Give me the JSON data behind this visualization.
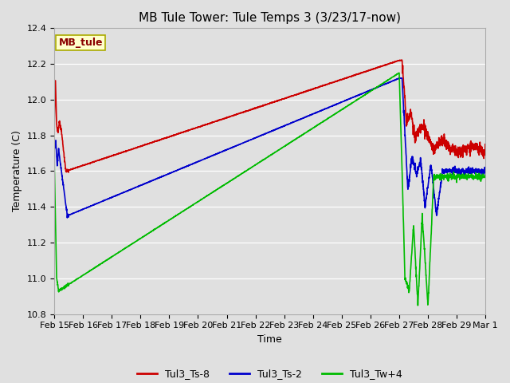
{
  "title": "MB Tule Tower: Tule Temps 3 (3/23/17-now)",
  "xlabel": "Time",
  "ylabel": "Temperature (C)",
  "ylim": [
    10.8,
    12.4
  ],
  "yticks": [
    10.8,
    11.0,
    11.2,
    11.4,
    11.6,
    11.8,
    12.0,
    12.2,
    12.4
  ],
  "xtick_labels": [
    "Feb 15",
    "Feb 16",
    "Feb 17",
    "Feb 18",
    "Feb 19",
    "Feb 20",
    "Feb 21",
    "Feb 22",
    "Feb 23",
    "Feb 24",
    "Feb 25",
    "Feb 26",
    "Feb 27",
    "Feb 28",
    "Feb 29",
    "Mar 1"
  ],
  "bg_color": "#e0e0e0",
  "plot_bg_color": "#e0e0e0",
  "legend_label": "MB_tule",
  "legend_bg": "#ffffcc",
  "legend_border": "#aaaa00",
  "series_colors": [
    "#cc0000",
    "#0000cc",
    "#00bb00"
  ],
  "series_labels": [
    "Tul3_Ts-8",
    "Tul3_Ts-2",
    "Tul3_Tw+4"
  ],
  "line_width": 1.2,
  "grid_color": "#ffffff",
  "title_fontsize": 11,
  "tick_fontsize": 8,
  "axis_label_fontsize": 9
}
